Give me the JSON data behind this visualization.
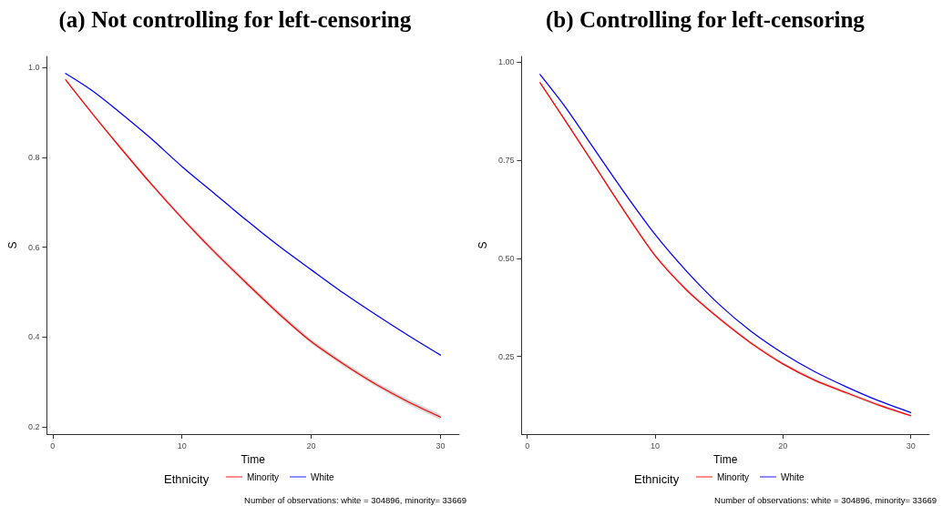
{
  "chart_data": [
    {
      "type": "line",
      "title": "(a) Not controlling for left-censoring",
      "xlabel": "Time",
      "ylabel": "S",
      "legend_title": "Ethnicity",
      "legend": "bottom",
      "grid": false,
      "marker": "none",
      "line_style": "solid",
      "x": [
        1,
        3,
        5,
        7.5,
        10,
        12.5,
        15,
        17.5,
        20,
        22.5,
        25,
        27.5,
        30
      ],
      "xlim": [
        -0.45,
        31.45
      ],
      "xticks": [
        0,
        10,
        20,
        30
      ],
      "ylim": [
        0.184,
        1.025
      ],
      "yticks": [
        {
          "value": 0.2,
          "label": "0.2"
        },
        {
          "value": 0.4,
          "label": "0.4"
        },
        {
          "value": 0.6,
          "label": "0.6"
        },
        {
          "value": 0.8,
          "label": "0.8"
        },
        {
          "value": 1,
          "label": "1.0"
        }
      ],
      "series": [
        {
          "name": "Minority",
          "color": "#ff0000",
          "values": [
            0.973,
            0.9,
            0.83,
            0.745,
            0.665,
            0.59,
            0.52,
            0.452,
            0.39,
            0.34,
            0.295,
            0.256,
            0.222
          ],
          "lower": [
            0.971,
            0.898,
            0.827,
            0.741,
            0.661,
            0.585,
            0.515,
            0.447,
            0.385,
            0.335,
            0.29,
            0.25,
            0.216
          ],
          "upper": [
            0.975,
            0.902,
            0.833,
            0.749,
            0.669,
            0.595,
            0.525,
            0.457,
            0.395,
            0.345,
            0.3,
            0.262,
            0.228
          ]
        },
        {
          "name": "White",
          "color": "#0000ff",
          "values": [
            0.987,
            0.95,
            0.905,
            0.845,
            0.78,
            0.72,
            0.66,
            0.603,
            0.55,
            0.498,
            0.45,
            0.404,
            0.36
          ]
        }
      ],
      "annotations": [
        "Number of observations: white = 304896, minority= 33669"
      ]
    },
    {
      "type": "line",
      "title": "(b) Controlling for left-censoring",
      "xlabel": "Time",
      "ylabel": "S",
      "legend_title": "Ethnicity",
      "legend": "bottom",
      "grid": false,
      "marker": "none",
      "line_style": "solid",
      "x": [
        1,
        3,
        5,
        7.5,
        10,
        12.5,
        15,
        17.5,
        20,
        22.5,
        25,
        27.5,
        30
      ],
      "xlim": [
        -0.45,
        31.45
      ],
      "xticks": [
        0,
        10,
        20,
        30
      ],
      "ylim": [
        0.052,
        1.015
      ],
      "yticks": [
        {
          "value": 0.25,
          "label": "0.25"
        },
        {
          "value": 0.5,
          "label": "0.50"
        },
        {
          "value": 0.75,
          "label": "0.75"
        },
        {
          "value": 1,
          "label": "1.00"
        }
      ],
      "series": [
        {
          "name": "Minority",
          "color": "#ff0000",
          "values": [
            0.948,
            0.85,
            0.75,
            0.625,
            0.507,
            0.418,
            0.347,
            0.284,
            0.231,
            0.189,
            0.157,
            0.126,
            0.099
          ],
          "lower": [
            0.946,
            0.847,
            0.747,
            0.621,
            0.503,
            0.414,
            0.343,
            0.28,
            0.227,
            0.185,
            0.153,
            0.122,
            0.096
          ],
          "upper": [
            0.95,
            0.853,
            0.753,
            0.629,
            0.511,
            0.422,
            0.351,
            0.288,
            0.235,
            0.193,
            0.161,
            0.13,
            0.102
          ]
        },
        {
          "name": "White",
          "color": "#0000ff",
          "values": [
            0.969,
            0.885,
            0.79,
            0.672,
            0.561,
            0.466,
            0.383,
            0.314,
            0.258,
            0.211,
            0.172,
            0.137,
            0.107
          ]
        }
      ],
      "annotations": [
        "Number of observations: white = 304896, minority= 33669"
      ]
    }
  ]
}
